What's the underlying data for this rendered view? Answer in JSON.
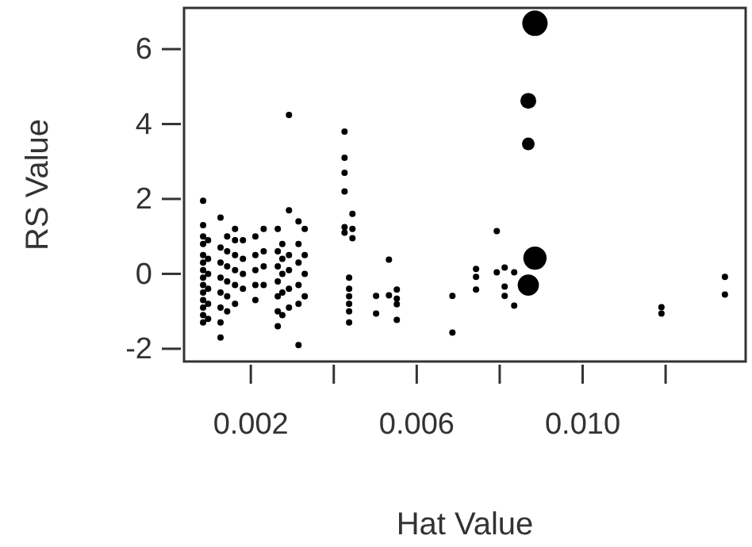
{
  "chart_data": {
    "type": "bubble",
    "xlabel": "Hat Value",
    "ylabel": "RS Value",
    "xlim": [
      0.00039,
      0.01393
    ],
    "ylim": [
      -2.34,
      7.1
    ],
    "xticks": [
      0.002,
      {
        "value": 0.004,
        "label": null
      },
      0.006,
      {
        "value": 0.008,
        "label": null
      },
      {
        "value": 0.01,
        "label": "0.010"
      },
      {
        "value": 0.012,
        "label": null
      }
    ],
    "yticks": [
      -2,
      0,
      2,
      4,
      6
    ],
    "grid": false,
    "marker": "circle",
    "series": [
      {
        "type": "scatter",
        "color": "#000000",
        "x": [
          0.00085,
          0.00085,
          0.00085,
          0.00085,
          0.00085,
          0.00085,
          0.00085,
          0.00085,
          0.00085,
          0.00085,
          0.00085,
          0.00085,
          0.00085,
          0.00085,
          0.00097,
          0.00097,
          0.00097,
          0.00097,
          0.00097,
          0.00097,
          0.00127,
          0.00127,
          0.00127,
          0.00127,
          0.00127,
          0.00127,
          0.00127,
          0.00127,
          0.00143,
          0.00143,
          0.00143,
          0.00143,
          0.00143,
          0.00143,
          0.00162,
          0.00162,
          0.00162,
          0.00162,
          0.00162,
          0.00162,
          0.00181,
          0.00181,
          0.00181,
          0.00181,
          0.00211,
          0.00211,
          0.00211,
          0.00211,
          0.00211,
          0.00231,
          0.00231,
          0.00231,
          0.00231,
          0.00265,
          0.00265,
          0.00265,
          0.00265,
          0.00265,
          0.00265,
          0.00265,
          0.00276,
          0.00276,
          0.00276,
          0.00276,
          0.00276,
          0.00292,
          0.00292,
          0.00292,
          0.00292,
          0.00292,
          0.00292,
          0.00315,
          0.00315,
          0.00315,
          0.00315,
          0.00315,
          0.00315,
          0.0033,
          0.0033,
          0.0033,
          0.0033,
          0.00426,
          0.00426,
          0.00426,
          0.00426,
          0.00426,
          0.00426,
          0.00437,
          0.00437,
          0.00437,
          0.00437,
          0.00437,
          0.00437,
          0.00445,
          0.00445,
          0.00445,
          0.00502,
          0.00502,
          0.00533,
          0.00533,
          0.00552,
          0.00552,
          0.00552,
          0.00552,
          0.00686,
          0.00686,
          0.00743,
          0.00743,
          0.00743,
          0.00793,
          0.00793,
          0.00812,
          0.00812,
          0.00812,
          0.00835,
          0.00835,
          0.0119,
          0.0119,
          0.01343,
          0.01343
        ],
        "values": [
          -1.3,
          -1.1,
          -0.9,
          -0.7,
          -0.5,
          -0.3,
          -0.1,
          0.1,
          0.3,
          0.5,
          0.8,
          1.0,
          1.3,
          1.95,
          -1.2,
          -0.8,
          -0.4,
          0,
          0.4,
          0.9,
          -1.7,
          -1.3,
          -0.9,
          -0.5,
          -0.1,
          0.3,
          0.7,
          1.5,
          -1.0,
          -0.6,
          -0.2,
          0.2,
          0.6,
          1.0,
          -0.8,
          -0.3,
          0.1,
          0.5,
          0.9,
          1.2,
          -0.4,
          0,
          0.4,
          0.9,
          -0.7,
          -0.3,
          0.1,
          0.5,
          1.0,
          -0.3,
          0.2,
          0.6,
          1.2,
          -1.4,
          -1.0,
          -0.6,
          -0.2,
          0.2,
          0.6,
          1.2,
          -1.1,
          -0.5,
          0,
          0.4,
          0.8,
          -0.9,
          -0.4,
          0.1,
          0.5,
          1.7,
          4.24,
          -1.9,
          -0.8,
          -0.3,
          0.3,
          0.8,
          1.4,
          -0.6,
          0,
          0.5,
          1.2,
          3.8,
          3.1,
          2.7,
          2.2,
          1.25,
          1.1,
          -1.3,
          -1.0,
          -0.8,
          -0.6,
          -0.4,
          -0.1,
          1.6,
          1.2,
          0.95,
          -0.59,
          -1.06,
          0.38,
          -0.57,
          -0.42,
          -0.66,
          -0.81,
          -1.23,
          -0.59,
          -1.57,
          0.13,
          -0.08,
          -0.42,
          1.14,
          0.04,
          0.17,
          -0.34,
          -0.59,
          0.04,
          -0.85,
          -0.89,
          -1.06,
          -0.08,
          -0.55
        ]
      },
      {
        "type": "bubble",
        "color": "#000000",
        "x": [
          0.00885,
          0.00869,
          0.00869,
          0.00885,
          0.00869
        ],
        "values": [
          6.69,
          4.62,
          3.47,
          0.42,
          -0.3
        ],
        "sizes": [
          1,
          0.39,
          0.25,
          0.84,
          0.7
        ]
      }
    ]
  }
}
